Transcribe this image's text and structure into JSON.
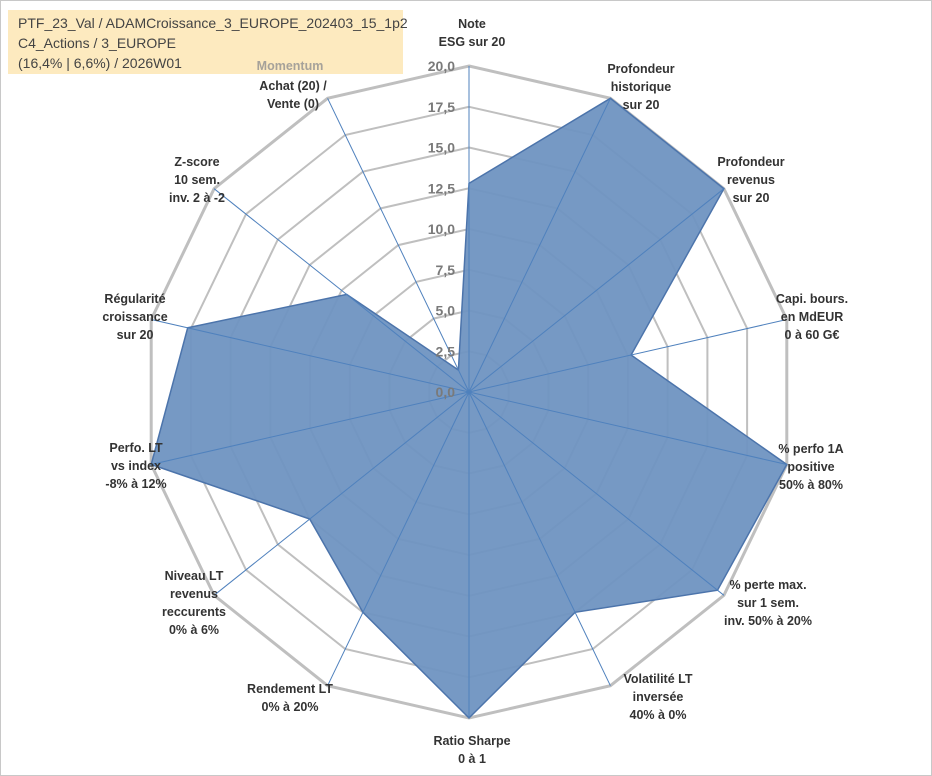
{
  "header": {
    "line1": "PTF_23_Val / ADAMCroissance_3_EUROPE_202403_15_1p2",
    "line2": "C4_Actions / 3_EUROPE",
    "line3": "(16,4% | 6,6%) / 2026W01",
    "momentum": "Momentum"
  },
  "chart_data": {
    "type": "radar",
    "max": 20,
    "ticks": [
      "0,0",
      "2,5",
      "5,0",
      "7,5",
      "10,0",
      "12,5",
      "15,0",
      "17,5",
      "20,0"
    ],
    "tick_values": [
      0,
      2.5,
      5,
      7.5,
      10,
      12.5,
      15,
      17.5,
      20
    ],
    "grid": true,
    "axes": [
      {
        "label": [
          "Note",
          "ESG sur 20"
        ],
        "value": 12.8
      },
      {
        "label": [
          "Profondeur",
          "historique",
          "sur 20"
        ],
        "value": 20
      },
      {
        "label": [
          "Profondeur",
          "revenus",
          "sur 20"
        ],
        "value": 20
      },
      {
        "label": [
          "Capi. bours.",
          "en MdEUR",
          "0 à 60 G€"
        ],
        "value": 10.2
      },
      {
        "label": [
          "% perfo 1A",
          "positive",
          "50% à 80%"
        ],
        "value": 20
      },
      {
        "label": [
          "% perte max.",
          "sur 1 sem.",
          "inv. 50% à 20%"
        ],
        "value": 19.5
      },
      {
        "label": [
          "Volatilité LT",
          "inversée",
          "40% à 0%"
        ],
        "value": 15
      },
      {
        "label": [
          "Ratio Sharpe",
          "0 à 1"
        ],
        "value": 20
      },
      {
        "label": [
          "Rendement LT",
          "0% à 20%"
        ],
        "value": 15
      },
      {
        "label": [
          "Niveau LT",
          "revenus",
          "reccurents",
          "0% à 6%"
        ],
        "value": 12.5
      },
      {
        "label": [
          "Perfo. LT",
          "vs index",
          "-8% à 12%"
        ],
        "value": 20
      },
      {
        "label": [
          "Régularité",
          "croissance",
          "sur 20"
        ],
        "value": 17.7
      },
      {
        "label": [
          "Z-score",
          "10 sem.",
          "inv. 2 à -2"
        ],
        "value": 9.6
      },
      {
        "label": [
          "Achat (20) /",
          "Vente (0)"
        ],
        "value": 1.5
      }
    ],
    "colors": {
      "fill": "#6f93c1",
      "stroke": "#4c74ab",
      "grid": "#bfbfbf",
      "spokes": "#4f81bd"
    }
  }
}
